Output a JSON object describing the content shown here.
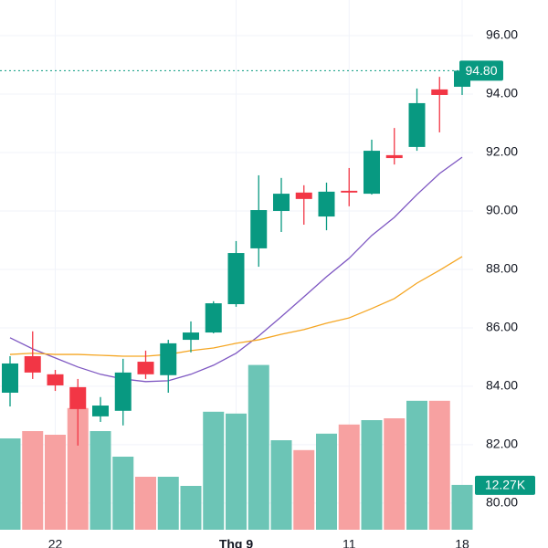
{
  "chart_data": {
    "type": "candlestick",
    "categories": [
      null,
      null,
      "22",
      null,
      null,
      null,
      null,
      null,
      null,
      null,
      "Thg 9",
      null,
      null,
      null,
      null,
      "11",
      null,
      null,
      null,
      null,
      "18"
    ],
    "open": [
      83.78,
      85.03,
      84.41,
      83.97,
      82.97,
      83.16,
      84.84,
      84.38,
      85.59,
      85.84,
      86.81,
      88.72,
      90.0,
      90.63,
      89.81,
      90.69,
      90.59,
      91.91,
      92.19,
      94.16,
      94.25
    ],
    "high": [
      85.03,
      85.88,
      84.56,
      84.25,
      83.63,
      84.94,
      85.22,
      85.59,
      86.22,
      86.91,
      88.97,
      91.22,
      91.13,
      90.88,
      90.97,
      91.47,
      92.44,
      92.84,
      94.19,
      94.59,
      94.97
    ],
    "low": [
      83.31,
      84.25,
      83.84,
      81.97,
      82.78,
      82.66,
      84.25,
      83.78,
      85.16,
      85.81,
      86.72,
      88.09,
      89.28,
      89.53,
      89.34,
      90.16,
      90.56,
      91.59,
      92.06,
      92.69,
      93.97
    ],
    "close": [
      84.78,
      84.47,
      84.03,
      83.22,
      83.34,
      84.47,
      84.41,
      85.47,
      85.84,
      86.84,
      88.56,
      90.03,
      90.59,
      90.41,
      90.66,
      90.63,
      92.06,
      91.81,
      93.69,
      93.97,
      94.8
    ],
    "volume": [
      25000,
      27000,
      26000,
      33300,
      27000,
      20000,
      14500,
      14500,
      12000,
      32300,
      31800,
      45100,
      24500,
      21800,
      26300,
      28800,
      30000,
      30500,
      35300,
      35300,
      12270
    ],
    "last_volume_label": "12.27K",
    "series": [
      {
        "color": "#7e57c2",
        "values": [
          85.66,
          85.28,
          84.97,
          84.66,
          84.41,
          84.25,
          84.16,
          84.19,
          84.41,
          84.72,
          85.13,
          85.72,
          86.38,
          87.06,
          87.75,
          88.38,
          89.16,
          89.78,
          90.56,
          91.28,
          91.84
        ]
      },
      {
        "color": "#f5a623",
        "values": [
          85.09,
          85.13,
          85.09,
          85.09,
          85.06,
          85.03,
          85.03,
          85.09,
          85.22,
          85.31,
          85.47,
          85.59,
          85.78,
          85.94,
          86.16,
          86.34,
          86.66,
          87.0,
          87.53,
          87.97,
          88.44
        ]
      }
    ],
    "up_color": "#089981",
    "down_color": "#f23645",
    "volume_up_color": "#6cc5b6",
    "volume_down_color": "#f7a1a1",
    "last_price": {
      "value": 94.8,
      "label": "94.80"
    },
    "ylim": [
      79.09,
      97.22
    ],
    "yticks": [
      {
        "value": 80,
        "label": "80.00"
      },
      {
        "value": 82,
        "label": "82.00"
      },
      {
        "value": 84,
        "label": "84.00"
      },
      {
        "value": 86,
        "label": "86.00"
      },
      {
        "value": 88,
        "label": "88.00"
      },
      {
        "value": 90,
        "label": "90.00"
      },
      {
        "value": 92,
        "label": "92.00"
      },
      {
        "value": 94,
        "label": "94.00"
      },
      {
        "value": 96,
        "label": "96.00"
      }
    ],
    "volume_lim": [
      0,
      80000
    ],
    "grid": true
  }
}
